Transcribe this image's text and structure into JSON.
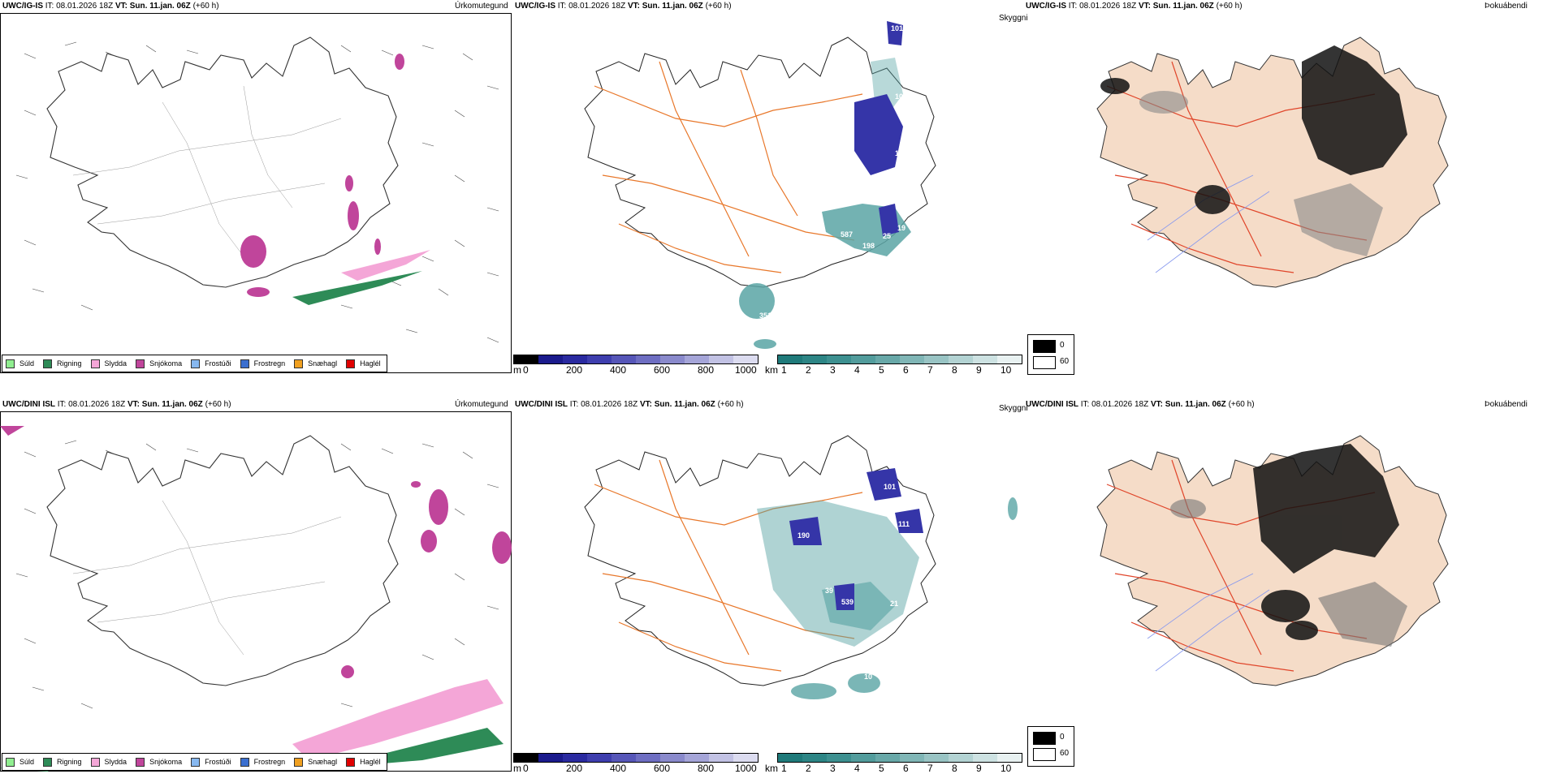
{
  "rows": [
    {
      "model": "UWC/IG-IS",
      "it_label": "IT:",
      "it_value": "08.01.2026 18Z",
      "vt_label": "VT:",
      "vt_value": "Sun. 11.jan. 06Z",
      "lead": "(+60 h)",
      "precip_title": "Úrkomutegund",
      "cloud_title": "Skyggni",
      "fog_title": "Þokuábendi",
      "cloud_labels": [
        "101",
        "108",
        "121",
        "110",
        "12",
        "587",
        "19",
        "25",
        "198",
        "203",
        "351"
      ]
    },
    {
      "model": "UWC/DINI ISL",
      "it_label": "IT:",
      "it_value": "08.01.2026 18Z",
      "vt_label": "VT:",
      "vt_value": "Sun. 11.jan. 06Z",
      "lead": "(+60 h)",
      "precip_title": "Úrkomutegund",
      "cloud_title": "Skyggni",
      "fog_title": "Þokuábendi",
      "cloud_labels": [
        "101",
        "98",
        "111",
        "291",
        "190",
        "39",
        "539",
        "14",
        "21",
        "10"
      ]
    }
  ],
  "precip_legend": [
    {
      "label": "Súld",
      "color": "#90ee90"
    },
    {
      "label": "Rigning",
      "color": "#2e8b57"
    },
    {
      "label": "Slydda",
      "color": "#f4a6d7"
    },
    {
      "label": "Snjókoma",
      "color": "#c0459b"
    },
    {
      "label": "Frostúði",
      "color": "#87b8f0"
    },
    {
      "label": "Frostregn",
      "color": "#3b6fcf"
    },
    {
      "label": "Snæhagl",
      "color": "#f0a020"
    },
    {
      "label": "Haglél",
      "color": "#e00000"
    }
  ],
  "cloud_base_bar": {
    "unit": "m",
    "ticks": [
      "0",
      "200",
      "400",
      "600",
      "800",
      "1000"
    ],
    "colors": [
      "#000000",
      "#1a1a8c",
      "#2a2aa0",
      "#3e3eae",
      "#5656b8",
      "#6e6ec2",
      "#8a8acc",
      "#a5a5d8",
      "#c2c2e4",
      "#dcdcf0"
    ]
  },
  "visibility_bar": {
    "unit": "km",
    "ticks": [
      "1",
      "2",
      "3",
      "4",
      "5",
      "6",
      "7",
      "8",
      "9",
      "10"
    ],
    "colors": [
      "#1f7a7a",
      "#2d8585",
      "#3d9090",
      "#529c9c",
      "#68a8a8",
      "#80b6b6",
      "#99c4c4",
      "#b3d3d3",
      "#cde2e2",
      "#e8f1f1"
    ]
  },
  "fog_key": {
    "dark": "0",
    "light": "60"
  },
  "colors": {
    "snow": "#c0459b",
    "sleet": "#f4a6d7",
    "rain": "#2e8b57",
    "road": "#e8772a",
    "fog_land": "#f5dcc8",
    "fog_road": "#e0452a",
    "river": "#8899ee",
    "cloud_low": "#3535a8",
    "vis": "#5aa5a5"
  }
}
